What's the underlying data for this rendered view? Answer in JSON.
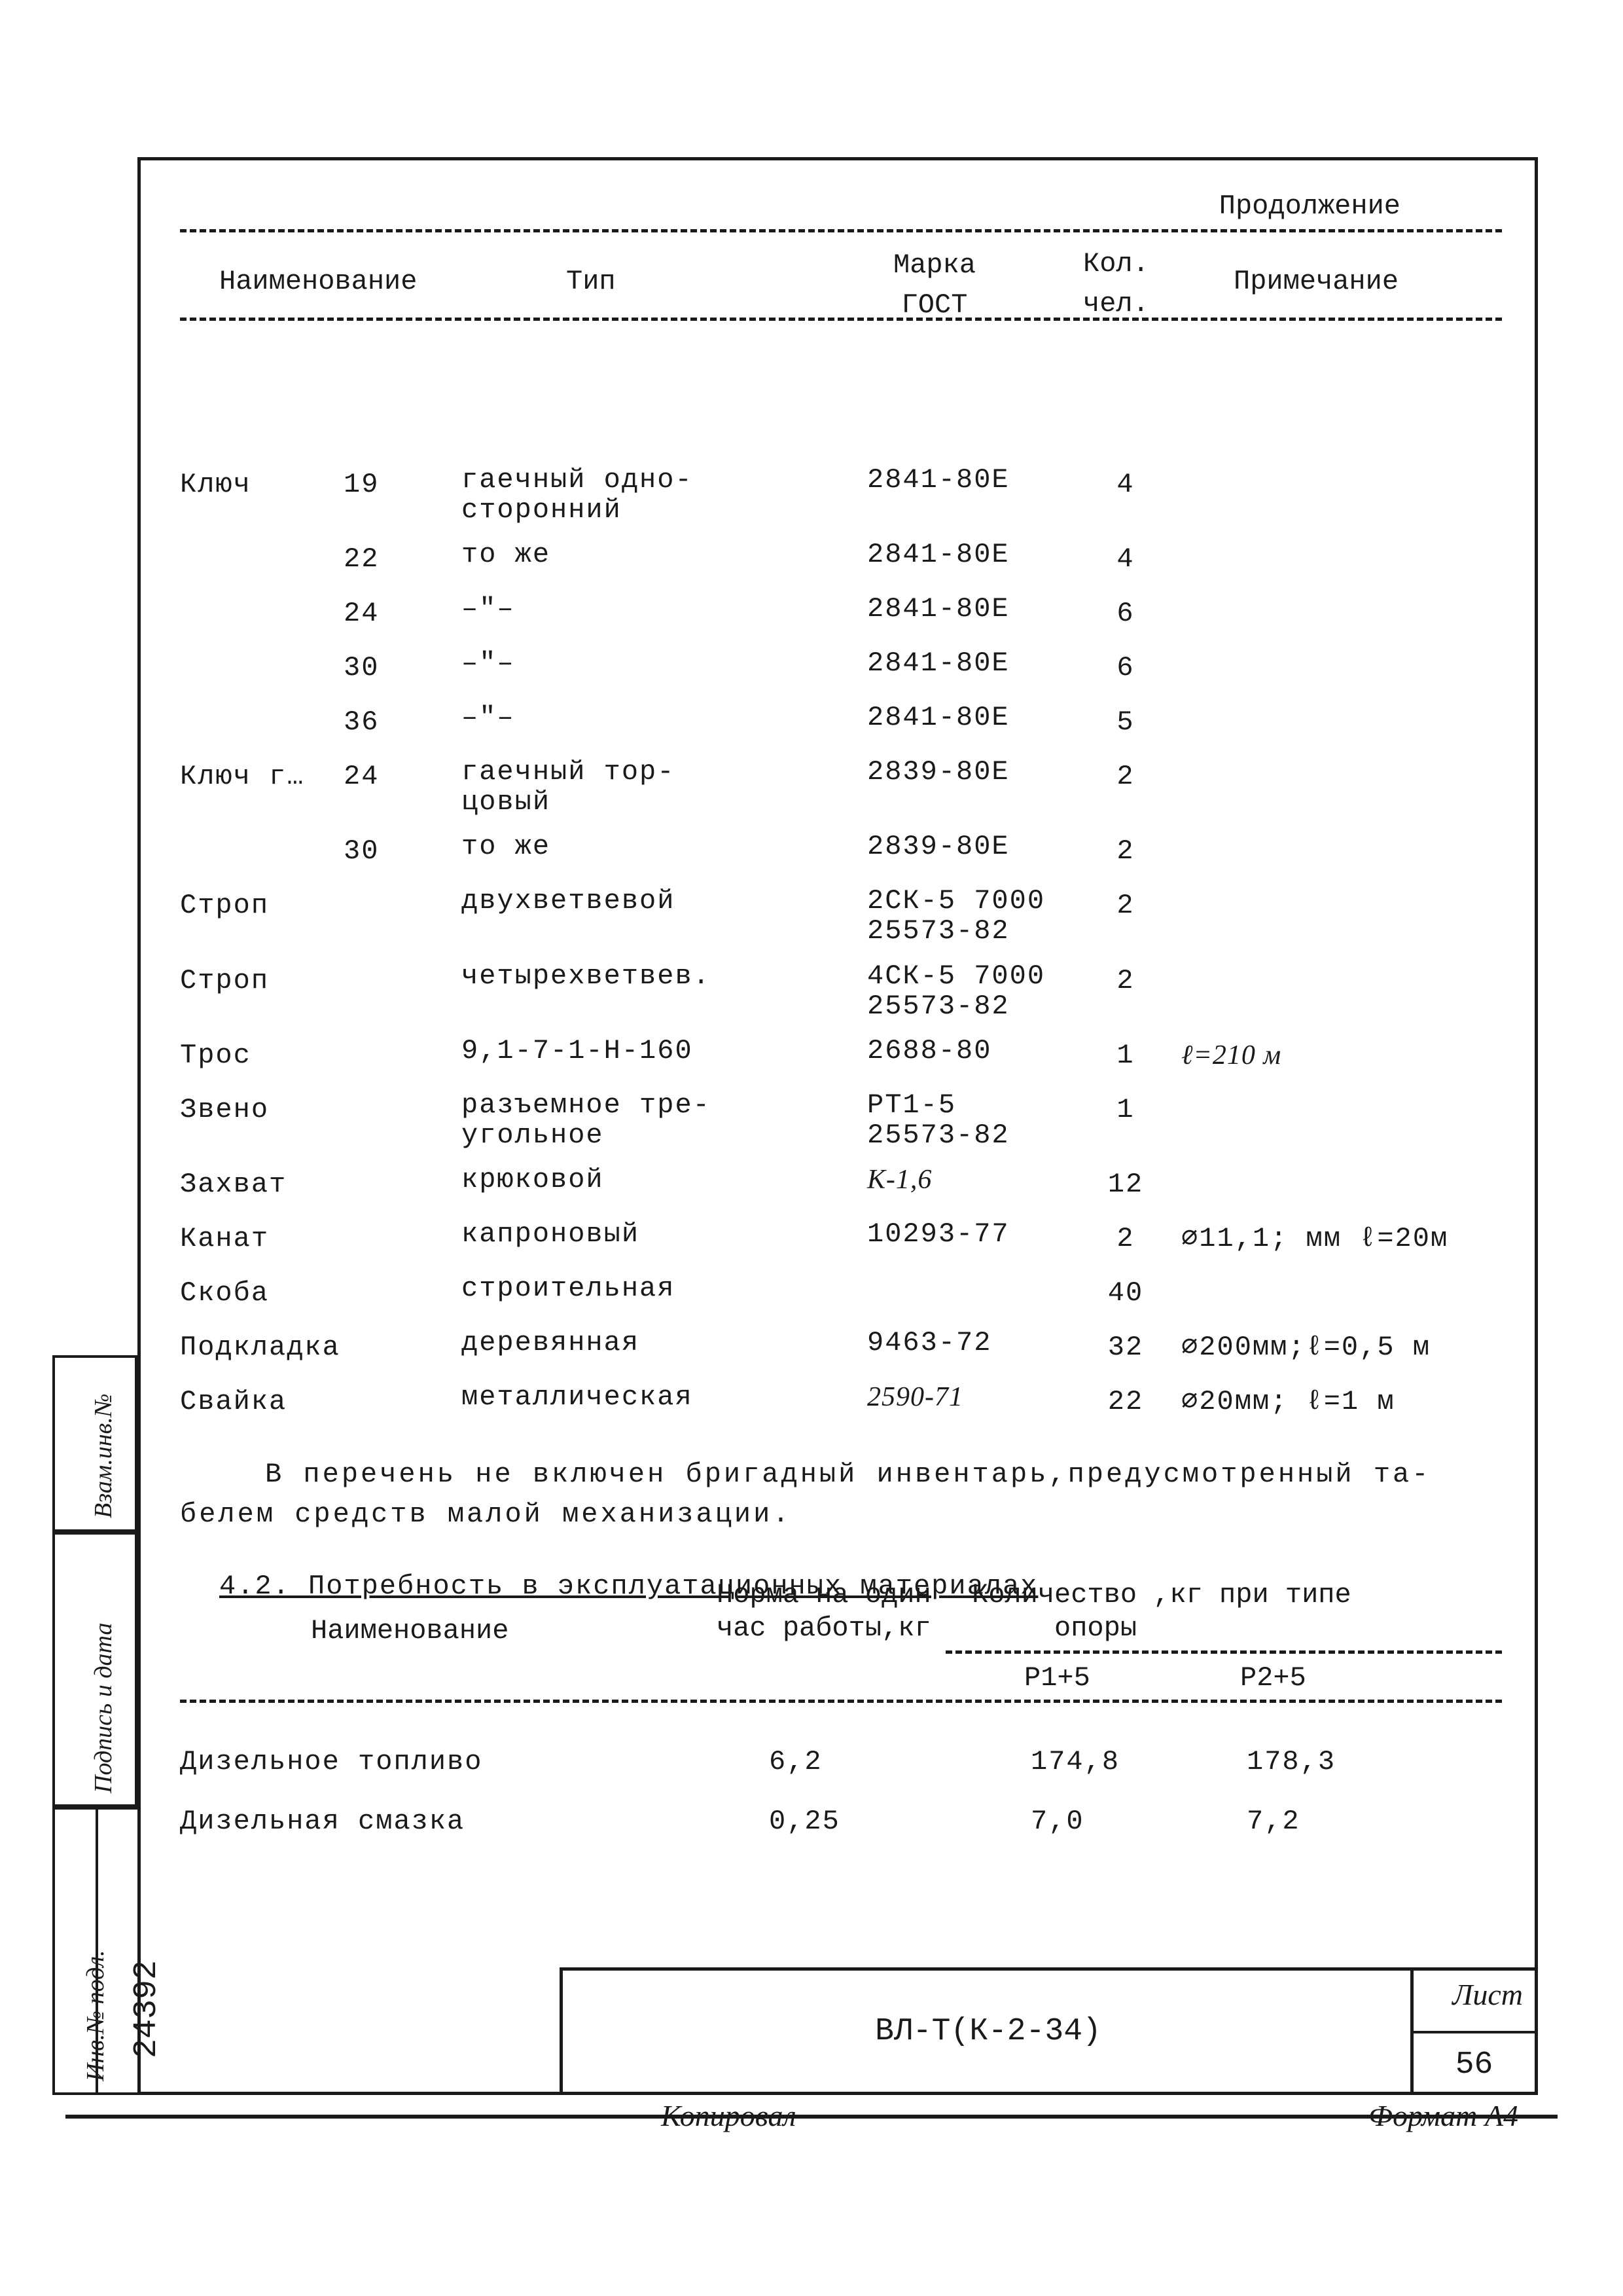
{
  "continuation": "Продолжение",
  "headers": {
    "name": "Наименование",
    "type": "Тип",
    "mark": "Марка\nГОСТ",
    "qty": "Кол.\nчел.",
    "note": "Примечание"
  },
  "rows": [
    {
      "name": "Ключ",
      "size": "19",
      "type": "гаечный одно-\nсторонний",
      "mark": "2841-80Е",
      "qty": "4",
      "note": ""
    },
    {
      "name": "",
      "size": "22",
      "type": "то же",
      "mark": "2841-80Е",
      "qty": "4",
      "note": ""
    },
    {
      "name": "",
      "size": "24",
      "type": "–\"–",
      "mark": "2841-80Е",
      "qty": "6",
      "note": ""
    },
    {
      "name": "",
      "size": "30",
      "type": "–\"–",
      "mark": "2841-80Е",
      "qty": "6",
      "note": ""
    },
    {
      "name": "",
      "size": "36",
      "type": "–\"–",
      "mark": "2841-80Е",
      "qty": "5",
      "note": ""
    },
    {
      "name": "Ключ г…",
      "size": "24",
      "type": "гаечный тор-\nцовый",
      "mark": "2839-80Е",
      "qty": "2",
      "note": ""
    },
    {
      "name": "",
      "size": "30",
      "type": "то же",
      "mark": "2839-80Е",
      "qty": "2",
      "note": ""
    },
    {
      "name": "Строп",
      "size": "",
      "type": "двухветвевой",
      "mark": "2СК-5 7000\n25573-82",
      "qty": "2",
      "note": ""
    },
    {
      "name": "Строп",
      "size": "",
      "type": "четырехветвев.",
      "mark": "4СК-5 7000\n25573-82",
      "qty": "2",
      "note": ""
    },
    {
      "name": "Трос",
      "size": "",
      "type": "9,1-7-1-Н-160",
      "mark": "2688-80",
      "qty": "1",
      "note": "ℓ=210 м",
      "note_italic": true
    },
    {
      "name": "Звено",
      "size": "",
      "type": "разъемное тре-\nугольное",
      "mark": "РТ1-5\n25573-82",
      "qty": "1",
      "note": ""
    },
    {
      "name": "Захват",
      "size": "",
      "type": "крюковой",
      "mark": "К-1,6",
      "qty": "12",
      "note": "",
      "mark_italic": true
    },
    {
      "name": "Канат",
      "size": "",
      "type": "капроновый",
      "mark": "10293-77",
      "qty": "2",
      "note": "∅11,1; мм ℓ=20м"
    },
    {
      "name": "Скоба",
      "size": "",
      "type": "строительная",
      "mark": "",
      "qty": "40",
      "note": ""
    },
    {
      "name": "Подкладка",
      "size": "",
      "type": "деревянная",
      "mark": "9463-72",
      "qty": "32",
      "note": "∅200мм;ℓ=0,5 м"
    },
    {
      "name": "Свайка",
      "size": "",
      "type": "металлическая",
      "mark": "2590-71",
      "qty": "22",
      "note": "∅20мм; ℓ=1 м",
      "mark_italic": true
    }
  ],
  "note_paragraph_1": "В перечень не включен бригадный инвентарь,предусмотренный та-",
  "note_paragraph_2": "белем средств малой механизации.",
  "section42": "4.2. Потребность в эксплуатационных материалах",
  "mat_headers": {
    "name": "Наименование",
    "norm": "Норма на один\nчас работы,кг",
    "qty_label": "Количество ,кг при типе\n     опоры",
    "p1": "Р1+5",
    "p2": "Р2+5"
  },
  "mat_rows": [
    {
      "name": "Дизельное топливо",
      "norm": "6,2",
      "p1": "174,8",
      "p2": "178,3"
    },
    {
      "name": "Дизельная смазка",
      "norm": "0,25",
      "p1": "7,0",
      "p2": "7,2"
    }
  ],
  "titleblock": {
    "doc": "ВЛ-Т(К-2-34)",
    "list_label": "Лист",
    "list_num": "56"
  },
  "footer": {
    "kop": "Копировал",
    "fmt": "Формат А4"
  },
  "side": {
    "s1": "Взам.инв.№",
    "s2": "Подпись и дата",
    "s3a": "Инв.№ подл.",
    "s3b": "24392"
  },
  "colors": {
    "ink": "#1a1a1a",
    "paper": "#ffffff"
  },
  "fonts": {
    "mono": "Courier New",
    "italic": "Times New Roman"
  }
}
